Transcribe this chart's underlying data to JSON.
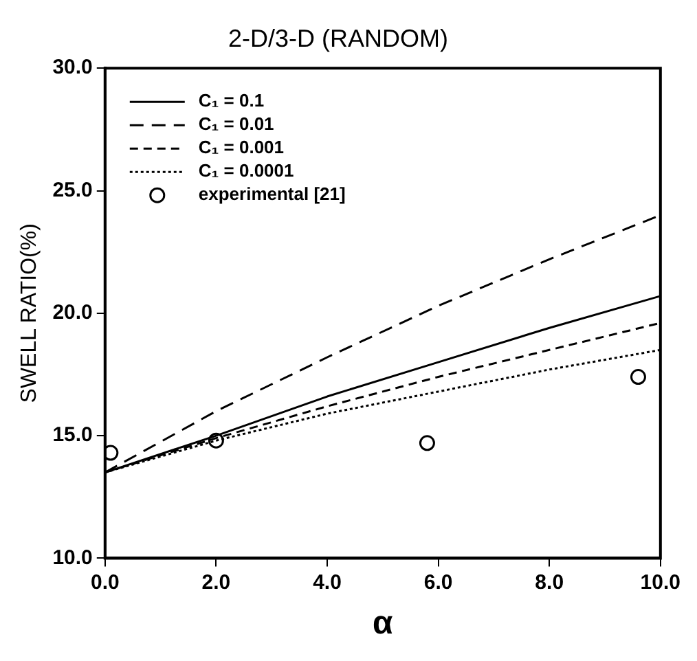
{
  "chart_data": {
    "type": "line",
    "title": "2-D/3-D (RANDOM)",
    "xlabel": "α",
    "ylabel": "SWELL RATIO(%)",
    "xlim": [
      0,
      10
    ],
    "ylim": [
      10,
      30
    ],
    "xticks": [
      {
        "value": 0,
        "label": "0.0"
      },
      {
        "value": 2,
        "label": "2.0"
      },
      {
        "value": 4,
        "label": "4.0"
      },
      {
        "value": 6,
        "label": "6.0"
      },
      {
        "value": 8,
        "label": "8.0"
      },
      {
        "value": 10,
        "label": "10.0"
      }
    ],
    "yticks": [
      {
        "value": 10,
        "label": "10.0"
      },
      {
        "value": 15,
        "label": "15.0"
      },
      {
        "value": 20,
        "label": "20.0"
      },
      {
        "value": 25,
        "label": "25.0"
      },
      {
        "value": 30,
        "label": "30.0"
      }
    ],
    "grid": false,
    "legend": "top left",
    "marker": "none",
    "series": [
      {
        "name": "C₁ = 0.1",
        "color": "#000000",
        "line_style": "solid",
        "x": [
          0,
          2,
          4,
          6,
          8,
          10
        ],
        "values": [
          13.5,
          15.0,
          16.6,
          18.0,
          19.4,
          20.7
        ]
      },
      {
        "name": "C₁ = 0.01",
        "color": "#000000",
        "line_style": "dashed",
        "x": [
          0,
          2,
          4,
          6,
          8,
          10
        ],
        "values": [
          13.5,
          16.0,
          18.2,
          20.3,
          22.2,
          24.0
        ]
      },
      {
        "name": "C₁ = 0.001",
        "color": "#000000",
        "line_style": "dashed",
        "x": [
          0,
          2,
          4,
          6,
          8,
          10
        ],
        "values": [
          13.5,
          14.9,
          16.2,
          17.4,
          18.5,
          19.6
        ]
      },
      {
        "name": "C₁ = 0.0001",
        "color": "#000000",
        "line_style": "dotted",
        "x": [
          0,
          2,
          4,
          6,
          8,
          10
        ],
        "values": [
          13.5,
          14.8,
          15.9,
          16.8,
          17.7,
          18.5
        ]
      },
      {
        "name": "experimental [21]",
        "type": "scatter",
        "marker": "circle",
        "color": "#000000",
        "x": [
          0.1,
          2.0,
          5.8,
          9.6
        ],
        "values": [
          14.3,
          14.8,
          14.7,
          17.4
        ]
      }
    ]
  }
}
